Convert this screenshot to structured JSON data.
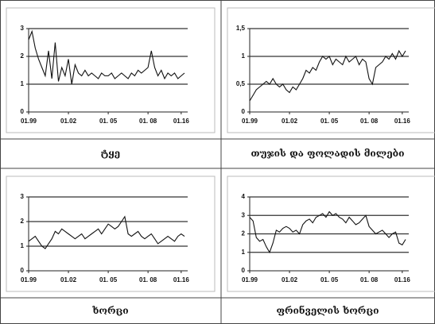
{
  "chart_data": [
    {
      "type": "line",
      "title": "ტყე",
      "values": [
        2.6,
        2.9,
        2.3,
        1.9,
        1.6,
        1.3,
        2.2,
        1.2,
        2.5,
        1.1,
        1.6,
        1.3,
        1.9,
        1.0,
        1.7,
        1.4,
        1.3,
        1.5,
        1.3,
        1.4,
        1.3,
        1.2,
        1.4,
        1.3,
        1.3,
        1.4,
        1.2,
        1.3,
        1.4,
        1.3,
        1.2,
        1.4,
        1.3,
        1.5,
        1.4,
        1.5,
        1.6,
        2.2,
        1.6,
        1.3,
        1.5,
        1.2,
        1.4,
        1.3,
        1.4,
        1.2,
        1.3,
        1.4
      ],
      "color": "#111111",
      "xticks": [
        {
          "value": 0,
          "label": "01.99"
        },
        {
          "value": 12,
          "label": "01.02"
        },
        {
          "value": 24,
          "label": "01. 05"
        },
        {
          "value": 36,
          "label": "01. 08"
        },
        {
          "value": 46,
          "label": "01.16"
        }
      ],
      "ylim": [
        0,
        3
      ],
      "yticks": [
        0,
        1,
        2,
        3
      ],
      "grid": true
    },
    {
      "type": "line",
      "title": "თუჯის და ფოლადის მილები",
      "values": [
        0.2,
        0.3,
        0.4,
        0.45,
        0.5,
        0.55,
        0.5,
        0.6,
        0.5,
        0.45,
        0.5,
        0.4,
        0.35,
        0.45,
        0.4,
        0.5,
        0.6,
        0.75,
        0.7,
        0.8,
        0.75,
        0.9,
        1.0,
        0.95,
        1.0,
        0.85,
        0.95,
        0.9,
        0.85,
        1.0,
        0.9,
        0.95,
        1.0,
        0.85,
        0.95,
        0.9,
        0.6,
        0.5,
        0.8,
        0.85,
        0.9,
        1.0,
        0.95,
        1.05,
        0.95,
        1.1,
        1.0,
        1.1
      ],
      "color": "#111111",
      "xticks": [
        {
          "value": 0,
          "label": "01.99"
        },
        {
          "value": 12,
          "label": "01.02"
        },
        {
          "value": 24,
          "label": "01. 05"
        },
        {
          "value": 36,
          "label": "01. 08"
        },
        {
          "value": 46,
          "label": "01.16"
        }
      ],
      "ylim": [
        0,
        1.5
      ],
      "yticks": [
        0,
        {
          "value": 0.5,
          "label": "0,5"
        },
        1,
        {
          "value": 1.5,
          "label": "1,5"
        }
      ],
      "grid": true
    },
    {
      "type": "line",
      "title": "ხორცი",
      "values": [
        1.2,
        1.3,
        1.4,
        1.2,
        1.0,
        0.9,
        1.1,
        1.3,
        1.6,
        1.5,
        1.7,
        1.6,
        1.5,
        1.4,
        1.3,
        1.4,
        1.5,
        1.3,
        1.4,
        1.5,
        1.6,
        1.7,
        1.5,
        1.7,
        1.9,
        1.8,
        1.7,
        1.8,
        2.0,
        2.2,
        1.5,
        1.4,
        1.5,
        1.6,
        1.4,
        1.3,
        1.4,
        1.5,
        1.3,
        1.1,
        1.2,
        1.3,
        1.4,
        1.3,
        1.2,
        1.4,
        1.5,
        1.4
      ],
      "color": "#111111",
      "xticks": [
        {
          "value": 0,
          "label": "01.99"
        },
        {
          "value": 12,
          "label": "01.02"
        },
        {
          "value": 24,
          "label": "01. 05"
        },
        {
          "value": 36,
          "label": "01. 08"
        },
        {
          "value": 46,
          "label": "01.16"
        }
      ],
      "ylim": [
        0,
        3
      ],
      "yticks": [
        0,
        1,
        2,
        3
      ],
      "grid": true
    },
    {
      "type": "line",
      "title": "ფრინველის ხორცი",
      "values": [
        2.9,
        2.7,
        1.8,
        1.6,
        1.7,
        1.3,
        1.0,
        1.5,
        2.2,
        2.1,
        2.3,
        2.4,
        2.3,
        2.1,
        2.2,
        2.0,
        2.5,
        2.7,
        2.8,
        2.6,
        2.9,
        3.0,
        3.1,
        2.9,
        3.2,
        3.0,
        3.1,
        2.9,
        2.8,
        2.6,
        2.9,
        2.7,
        2.5,
        2.6,
        2.8,
        3.0,
        2.4,
        2.2,
        2.0,
        2.1,
        2.2,
        2.0,
        1.8,
        2.0,
        2.1,
        1.5,
        1.4,
        1.7
      ],
      "color": "#111111",
      "xticks": [
        {
          "value": 0,
          "label": "01.99"
        },
        {
          "value": 12,
          "label": "01.02"
        },
        {
          "value": 24,
          "label": "01. 05"
        },
        {
          "value": 36,
          "label": "01. 08"
        },
        {
          "value": 46,
          "label": "01.16"
        }
      ],
      "ylim": [
        0,
        4
      ],
      "yticks": [
        0,
        1,
        2,
        3,
        4
      ],
      "grid": true
    }
  ]
}
